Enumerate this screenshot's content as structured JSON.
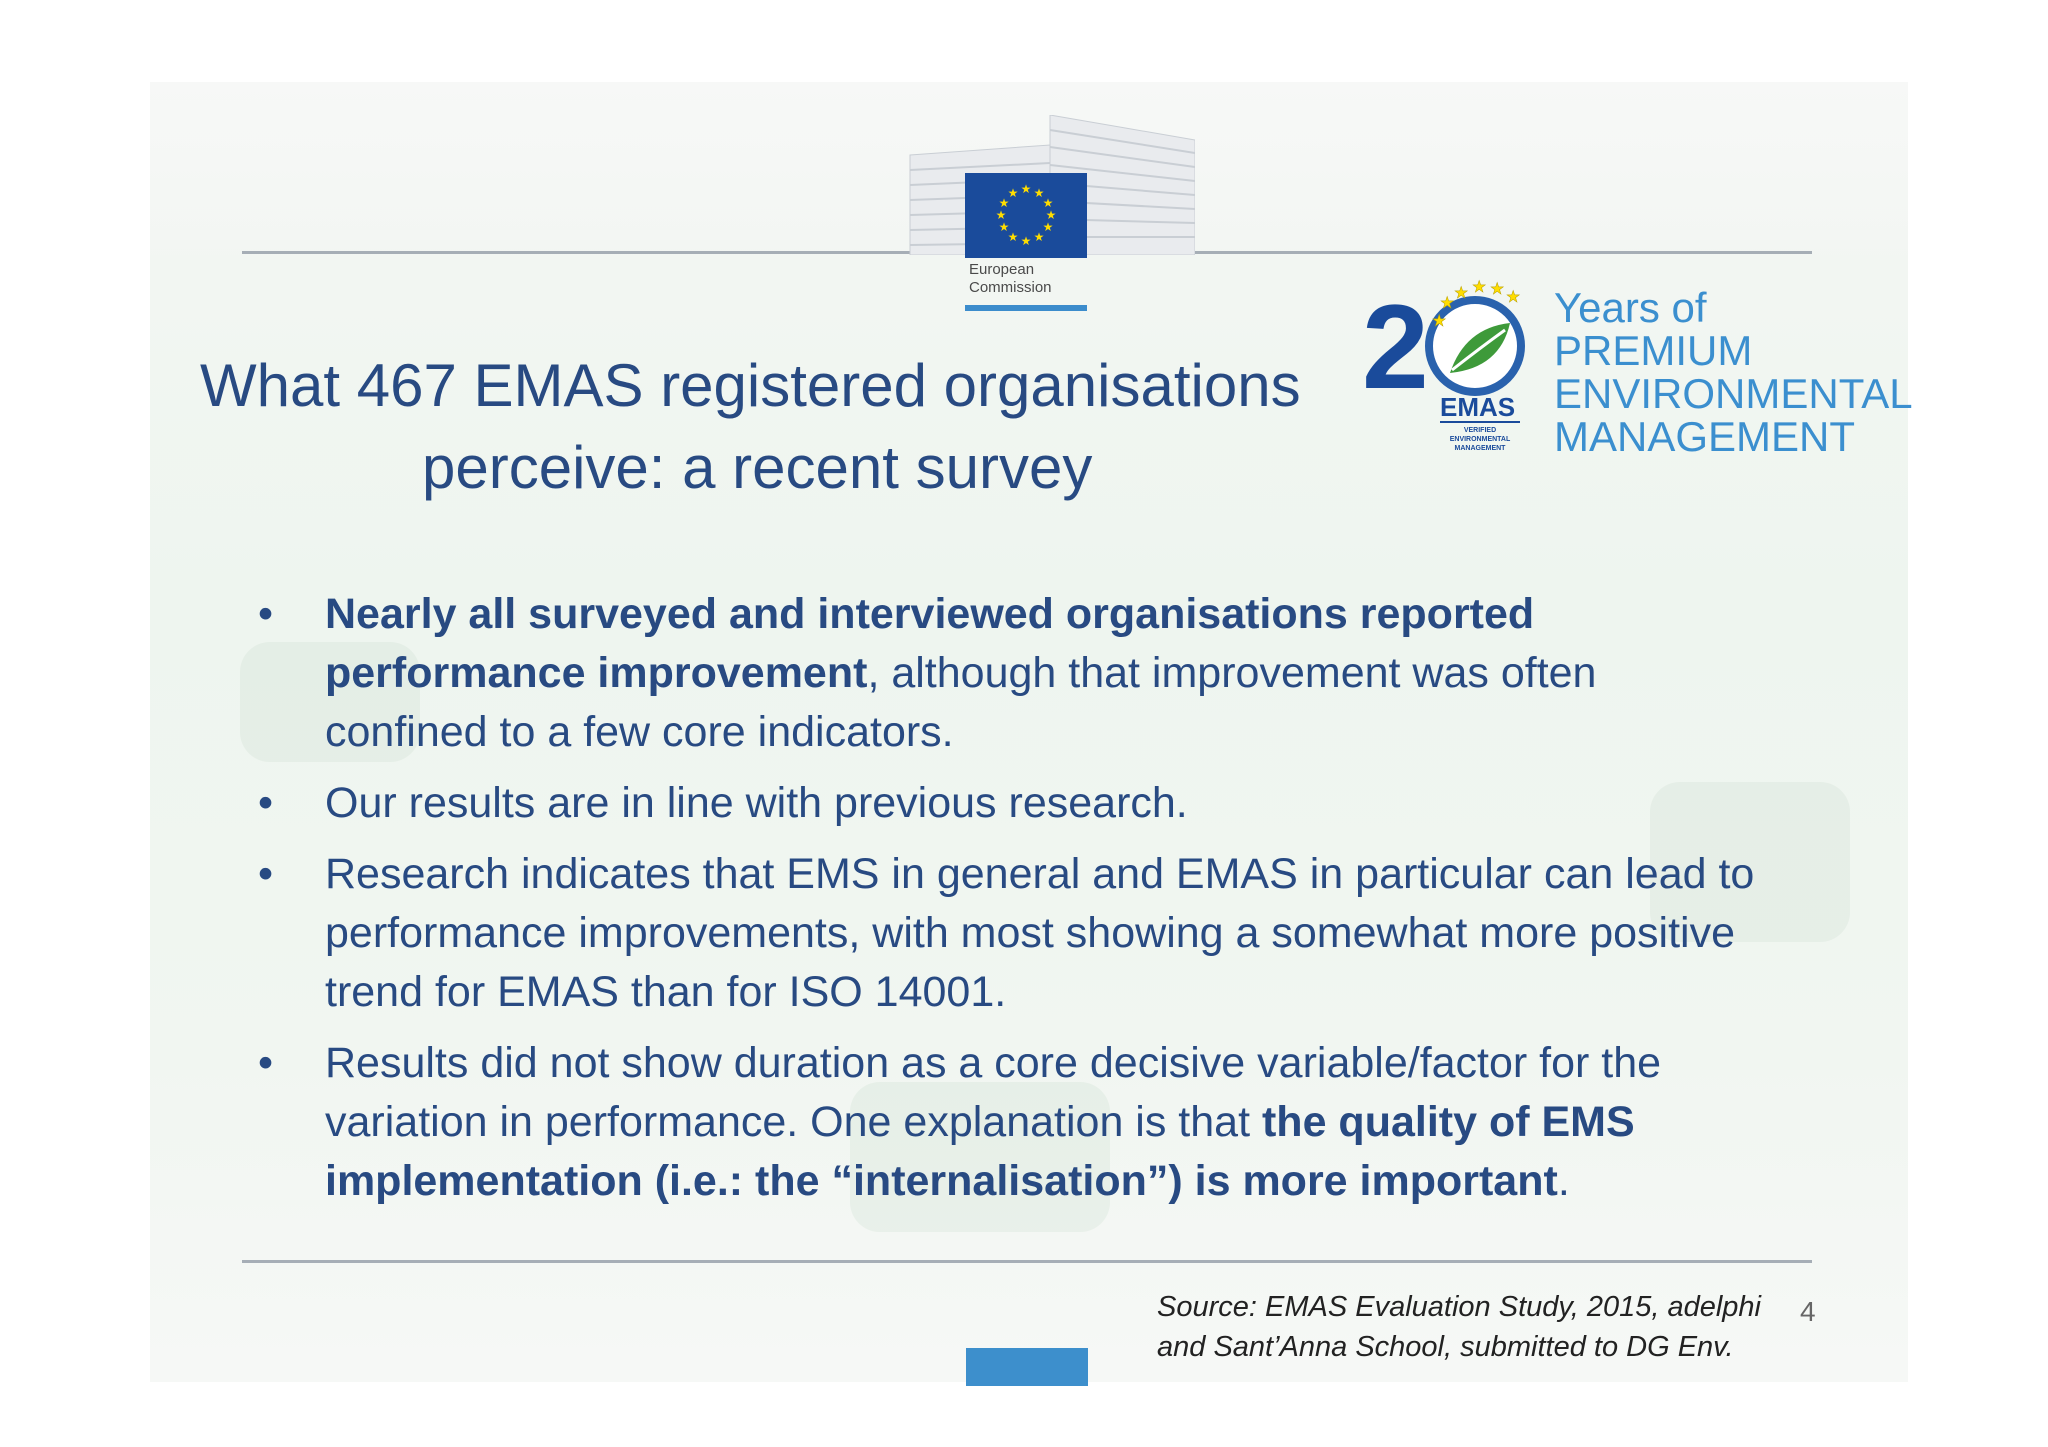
{
  "header": {
    "org_line1": "European",
    "org_line2": "Commission"
  },
  "badge": {
    "numeral": "2",
    "emas_label": "EMAS",
    "small_lines": [
      "VERIFIED",
      "ENVIRONMENTAL",
      "MANAGEMENT"
    ],
    "lines": [
      "Years of",
      "PREMIUM",
      "ENVIRONMENTAL",
      "MANAGEMENT"
    ]
  },
  "slide": {
    "title_line1": "What 467 EMAS registered organisations",
    "title_line2": "perceive: a recent survey",
    "bullet_symbol": "•",
    "bullets": [
      {
        "bold": "Nearly all surveyed and interviewed organisations reported performance improvement",
        "text": ",  although that improvement was often confined to a few core indicators."
      },
      {
        "text": "Our results are in line with previous research."
      },
      {
        "text": "Research indicates that EMS in general and EMAS in particular can lead to performance improvements, with most showing a somewhat more positive trend for EMAS than for ISO 14001."
      },
      {
        "text": "Results did not show duration as a core decisive variable/factor for the variation in performance. One explanation is that ",
        "bold": "the quality of EMS implementation (i.e.: the “internalisation”) is more important",
        "tail": "."
      }
    ],
    "source_line1": "Source: EMAS Evaluation Study, 2015, adelphi",
    "source_line2": "and Sant’Anna School, submitted to DG Env.",
    "page_number": "4"
  },
  "colors": {
    "title": "#284a82",
    "accent_blue": "#3d8fcc",
    "eu_blue": "#1a4b9b",
    "eu_star": "#ffdd00",
    "emas_green": "#3e9a3a"
  }
}
